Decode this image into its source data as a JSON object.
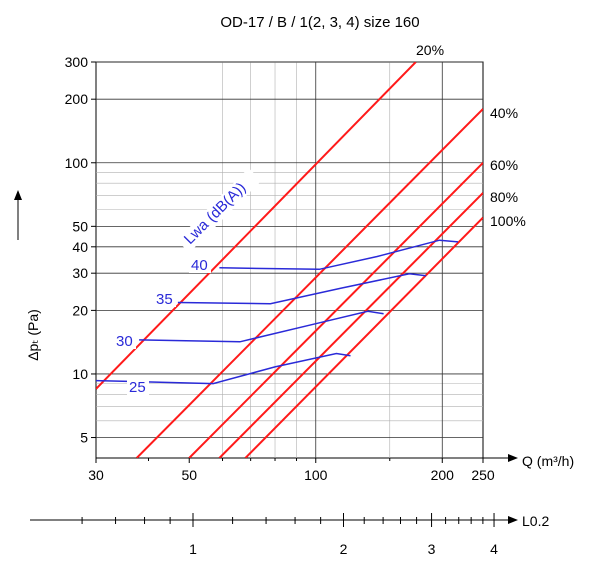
{
  "chart_data": {
    "type": "line",
    "title": "OD-17 / B / 1(2, 3, 4)    size 160",
    "xlabel": "Q (m³/h)",
    "ylabel": "Δpₜ (Pa)",
    "x_scale": "log",
    "y_scale": "log",
    "xlim": [
      30,
      250
    ],
    "ylim": [
      4,
      300
    ],
    "x_ticks": [
      30,
      50,
      100,
      200,
      250
    ],
    "x_tick_labels": [
      "30",
      "50",
      "100",
      "200",
      "250"
    ],
    "y_ticks": [
      5,
      10,
      20,
      30,
      40,
      50,
      100,
      200,
      300
    ],
    "y_tick_labels": [
      "5",
      "10",
      "20",
      "30",
      "40",
      "50",
      "100",
      "200",
      "300"
    ],
    "grid": true,
    "colors": {
      "opening_lines": "#ff1a1a",
      "sound_lines": "#2a2ad8",
      "grid": "#000000"
    },
    "opening_series": [
      {
        "name": "20%",
        "points": [
          [
            30,
            8.5
          ],
          [
            173,
            300
          ]
        ]
      },
      {
        "name": "40%",
        "points": [
          [
            37.5,
            4
          ],
          [
            250,
            180
          ]
        ]
      },
      {
        "name": "60%",
        "points": [
          [
            50,
            4
          ],
          [
            250,
            100
          ]
        ]
      },
      {
        "name": "80%",
        "points": [
          [
            59,
            4
          ],
          [
            250,
            72
          ]
        ]
      },
      {
        "name": "100%",
        "points": [
          [
            68,
            4
          ],
          [
            250,
            55
          ]
        ]
      }
    ],
    "sound_series": [
      {
        "name": "25",
        "points": [
          [
            30,
            9.3
          ],
          [
            57,
            9.0
          ],
          [
            80,
            10.8
          ],
          [
            112,
            12.5
          ],
          [
            121,
            12.2
          ]
        ]
      },
      {
        "name": "30",
        "points": [
          [
            38,
            14.5
          ],
          [
            66,
            14.2
          ],
          [
            100,
            17.3
          ],
          [
            133,
            19.8
          ],
          [
            145,
            19.3
          ]
        ]
      },
      {
        "name": "35",
        "points": [
          [
            47,
            21.8
          ],
          [
            78,
            21.5
          ],
          [
            115,
            25.5
          ],
          [
            167,
            29.8
          ],
          [
            183,
            29.2
          ]
        ]
      },
      {
        "name": "40",
        "points": [
          [
            59,
            31.8
          ],
          [
            102,
            31.3
          ],
          [
            140,
            36
          ],
          [
            197,
            43
          ],
          [
            218,
            42.2
          ]
        ]
      }
    ],
    "sound_label": "Lwa  (dB(A))",
    "secondary_axis": {
      "label": "L0.2",
      "ticks": [
        1,
        2,
        3,
        4
      ],
      "tick_labels": [
        "1",
        "2",
        "3",
        "4"
      ]
    }
  }
}
